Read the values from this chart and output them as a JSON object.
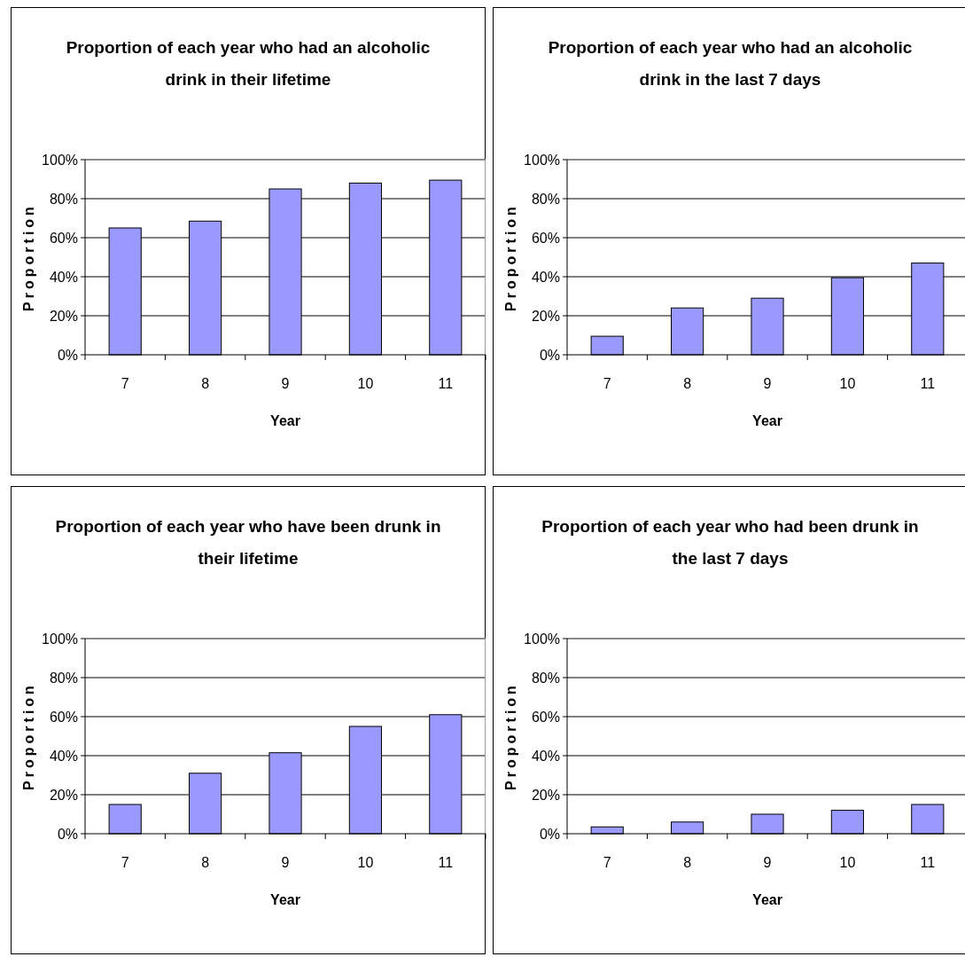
{
  "chart_data": [
    {
      "type": "bar",
      "title": "Proportion of each year who had an alcoholic drink in their lifetime",
      "xlabel": "Year",
      "ylabel": "Proportion",
      "categories": [
        "7",
        "8",
        "9",
        "10",
        "11"
      ],
      "values": [
        65,
        68.5,
        85,
        88,
        89.5
      ],
      "color": "#9999ff",
      "ylim": [
        0,
        100
      ],
      "yticks": [
        {
          "value": 0,
          "label": "0%"
        },
        {
          "value": 20,
          "label": "20%"
        },
        {
          "value": 40,
          "label": "40%"
        },
        {
          "value": 60,
          "label": "60%"
        },
        {
          "value": 80,
          "label": "80%"
        },
        {
          "value": 100,
          "label": "100%"
        }
      ],
      "grid": "y"
    },
    {
      "type": "bar",
      "title": "Proportion of each year who had an alcoholic drink in the last 7 days",
      "xlabel": "Year",
      "ylabel": "Proportion",
      "categories": [
        "7",
        "8",
        "9",
        "10",
        "11"
      ],
      "values": [
        9.5,
        24,
        29,
        39.5,
        47
      ],
      "color": "#9999ff",
      "ylim": [
        0,
        100
      ],
      "yticks": [
        {
          "value": 0,
          "label": "0%"
        },
        {
          "value": 20,
          "label": "20%"
        },
        {
          "value": 40,
          "label": "40%"
        },
        {
          "value": 60,
          "label": "60%"
        },
        {
          "value": 80,
          "label": "80%"
        },
        {
          "value": 100,
          "label": "100%"
        }
      ],
      "grid": "y"
    },
    {
      "type": "bar",
      "title": "Proportion of each year who have been drunk in their lifetime",
      "xlabel": "Year",
      "ylabel": "Proportion",
      "categories": [
        "7",
        "8",
        "9",
        "10",
        "11"
      ],
      "values": [
        15,
        31,
        41.5,
        55,
        61
      ],
      "color": "#9999ff",
      "ylim": [
        0,
        100
      ],
      "yticks": [
        {
          "value": 0,
          "label": "0%"
        },
        {
          "value": 20,
          "label": "20%"
        },
        {
          "value": 40,
          "label": "40%"
        },
        {
          "value": 60,
          "label": "60%"
        },
        {
          "value": 80,
          "label": "80%"
        },
        {
          "value": 100,
          "label": "100%"
        }
      ],
      "grid": "y"
    },
    {
      "type": "bar",
      "title": "Proportion of each year who had been drunk in the last 7 days",
      "xlabel": "Year",
      "ylabel": "Proportion",
      "categories": [
        "7",
        "8",
        "9",
        "10",
        "11"
      ],
      "values": [
        3.5,
        6,
        10,
        12,
        15
      ],
      "color": "#9999ff",
      "ylim": [
        0,
        100
      ],
      "yticks": [
        {
          "value": 0,
          "label": "0%"
        },
        {
          "value": 20,
          "label": "20%"
        },
        {
          "value": 40,
          "label": "40%"
        },
        {
          "value": 60,
          "label": "60%"
        },
        {
          "value": 80,
          "label": "80%"
        },
        {
          "value": 100,
          "label": "100%"
        }
      ],
      "grid": "y"
    }
  ]
}
